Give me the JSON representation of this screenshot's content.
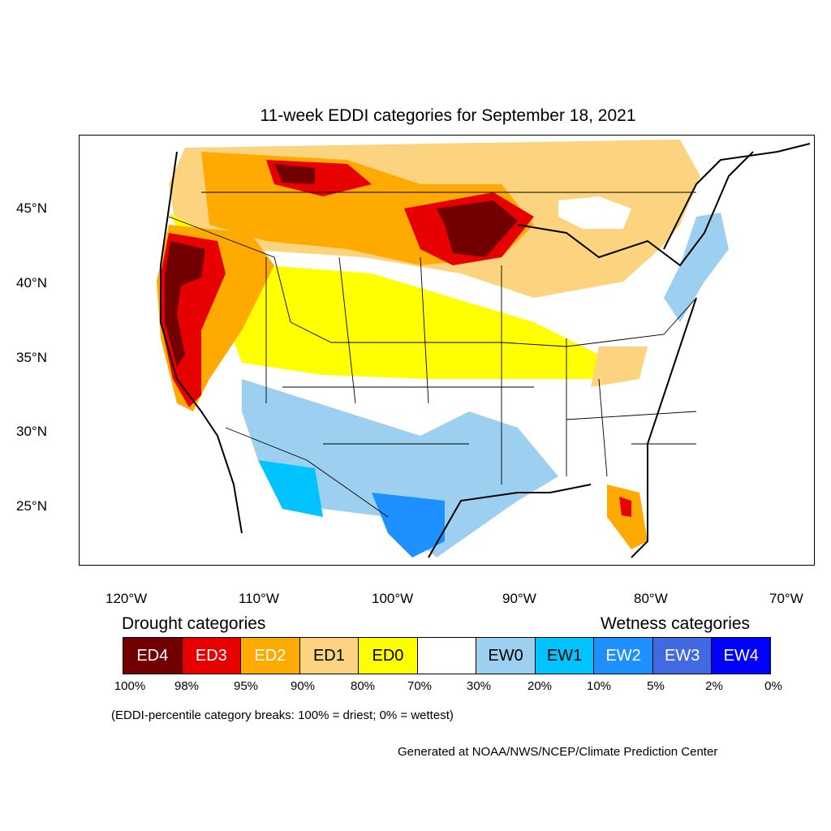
{
  "title": "11-week EDDI categories for September 18, 2021",
  "lat_labels": [
    "45°N",
    "40°N",
    "35°N",
    "30°N",
    "25°N"
  ],
  "lon_labels": [
    "120°W",
    "110°W",
    "100°W",
    "90°W",
    "80°W",
    "70°W"
  ],
  "legend": {
    "drought_heading": "Drought categories",
    "wetness_heading": "Wetness categories",
    "categories": [
      {
        "label": "ED4",
        "color": "#730000",
        "text_color": "#ffffff"
      },
      {
        "label": "ED3",
        "color": "#e60000",
        "text_color": "#ffffff"
      },
      {
        "label": "ED2",
        "color": "#ffaa00",
        "text_color": "#ffffff"
      },
      {
        "label": "ED1",
        "color": "#fcd37f",
        "text_color": "#000000"
      },
      {
        "label": "ED0",
        "color": "#ffff00",
        "text_color": "#000000"
      },
      {
        "label": "",
        "color": "#ffffff",
        "text_color": "#000000"
      },
      {
        "label": "EW0",
        "color": "#9dcff0",
        "text_color": "#000000"
      },
      {
        "label": "EW1",
        "color": "#00c3ff",
        "text_color": "#000000"
      },
      {
        "label": "EW2",
        "color": "#1e90ff",
        "text_color": "#ffffff"
      },
      {
        "label": "EW3",
        "color": "#4169e1",
        "text_color": "#ffffff"
      },
      {
        "label": "EW4",
        "color": "#0000ff",
        "text_color": "#ffffff"
      }
    ],
    "percentiles": [
      "100%",
      "98%",
      "95%",
      "90%",
      "80%",
      "70%",
      "30%",
      "20%",
      "10%",
      "5%",
      "2%",
      "0%"
    ],
    "note": "(EDDI-percentile category breaks: 100% = driest; 0% = wettest)"
  },
  "credit": "Generated at NOAA/NWS/NCEP/Climate Prediction Center"
}
